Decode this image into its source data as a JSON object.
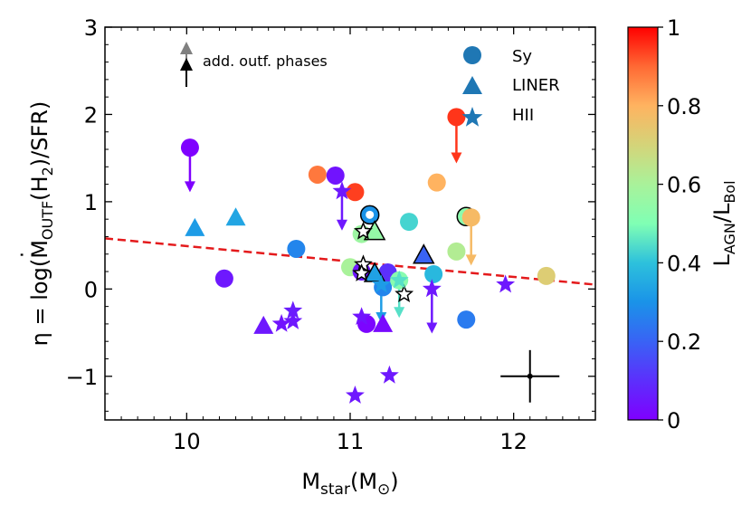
{
  "chart_data": {
    "type": "scatter",
    "xlabel": "M",
    "xlabel_sub": "star",
    "xlabel_unit": "(M",
    "xlabel_unit_sub": "⊙",
    "xlabel_close": ")",
    "ylabel_parts": {
      "eta": "η = log(",
      "m": "M",
      "m_sub": "OUTF",
      "h": "(H",
      "h_sub": "2",
      "tail": ")/SFR)"
    },
    "xlim": [
      9.5,
      12.5
    ],
    "ylim": [
      -1.5,
      3.0
    ],
    "xticks": [
      10,
      11,
      12
    ],
    "yticks": [
      -1,
      0,
      1,
      2,
      3
    ],
    "xtick_labels": [
      "10",
      "11",
      "12"
    ],
    "ytick_labels": [
      "−1",
      "0",
      "1",
      "2",
      "3"
    ],
    "colorbar": {
      "label_main": "L",
      "label_sub1": "AGN",
      "label_slash": "/L",
      "label_sub2": "Bol",
      "range": [
        0,
        1
      ],
      "ticks": [
        0,
        0.2,
        0.4,
        0.6,
        0.8,
        1
      ],
      "tick_labels": [
        "0",
        "0.2",
        "0.4",
        "0.6",
        "0.8",
        "1"
      ]
    },
    "legend": {
      "position": "top-right",
      "entries": [
        {
          "marker": "circle",
          "label": "Sy"
        },
        {
          "marker": "triangle",
          "label": "LINER"
        },
        {
          "marker": "star",
          "label": "HII"
        }
      ],
      "color": "#1f77b4"
    },
    "arrow_key": {
      "position": "top-left",
      "label": "add. outf. phases",
      "colors": [
        "#808080",
        "#000000"
      ]
    },
    "fit_line": {
      "x": [
        9.5,
        12.5
      ],
      "y": [
        0.58,
        0.05
      ],
      "color": "#e41a1c",
      "style": "dashed"
    },
    "errorbar": {
      "x": 12.1,
      "y": -1.0,
      "xerr": 0.18,
      "yerr": 0.3
    },
    "points": [
      {
        "x": 10.02,
        "y": 1.62,
        "marker": "circle",
        "c": 0.0,
        "arrow_to": 1.12
      },
      {
        "x": 10.23,
        "y": 0.12,
        "marker": "circle",
        "c": 0.05
      },
      {
        "x": 10.67,
        "y": 0.46,
        "marker": "circle",
        "c": 0.27
      },
      {
        "x": 10.8,
        "y": 1.31,
        "marker": "circle",
        "c": 0.88
      },
      {
        "x": 10.91,
        "y": 1.3,
        "marker": "circle",
        "c": 0.04
      },
      {
        "x": 11.03,
        "y": 1.11,
        "marker": "circle",
        "c": 0.94
      },
      {
        "x": 11.07,
        "y": 0.63,
        "marker": "circle",
        "c": 0.57
      },
      {
        "x": 11.12,
        "y": 0.85,
        "marker": "circle",
        "c": 0.3,
        "edge": true
      },
      {
        "x": 11.0,
        "y": 0.25,
        "marker": "circle",
        "c": 0.6
      },
      {
        "x": 11.07,
        "y": 0.2,
        "marker": "circle",
        "c": 0.05
      },
      {
        "x": 11.2,
        "y": 0.02,
        "marker": "circle",
        "c": 0.27
      },
      {
        "x": 11.23,
        "y": 0.19,
        "marker": "circle",
        "c": 0.1
      },
      {
        "x": 11.3,
        "y": 0.1,
        "marker": "circle",
        "c": 0.52
      },
      {
        "x": 11.36,
        "y": 0.77,
        "marker": "circle",
        "c": 0.43
      },
      {
        "x": 11.51,
        "y": 0.17,
        "marker": "circle",
        "c": 0.38
      },
      {
        "x": 11.53,
        "y": 1.22,
        "marker": "circle",
        "c": 0.8
      },
      {
        "x": 11.65,
        "y": 1.97,
        "marker": "circle",
        "c": 0.95,
        "arrow_to": 1.45
      },
      {
        "x": 11.65,
        "y": 0.43,
        "marker": "circle",
        "c": 0.62
      },
      {
        "x": 11.71,
        "y": 0.83,
        "marker": "circle",
        "c": 0.53,
        "edge": true
      },
      {
        "x": 11.74,
        "y": 0.82,
        "marker": "circle",
        "c": 0.78,
        "arrow_to": 0.28
      },
      {
        "x": 11.71,
        "y": -0.35,
        "marker": "circle",
        "c": 0.25
      },
      {
        "x": 12.2,
        "y": 0.15,
        "marker": "circle",
        "c": 0.72
      },
      {
        "x": 11.1,
        "y": -0.4,
        "marker": "circle",
        "c": 0.01
      },
      {
        "x": 10.05,
        "y": 0.7,
        "marker": "triangle",
        "c": 0.32
      },
      {
        "x": 10.3,
        "y": 0.82,
        "marker": "triangle",
        "c": 0.34
      },
      {
        "x": 11.15,
        "y": 0.66,
        "marker": "triangle",
        "c": 0.55,
        "edge": true
      },
      {
        "x": 11.15,
        "y": 0.18,
        "marker": "triangle",
        "c": 0.33,
        "edge": true
      },
      {
        "x": 11.45,
        "y": 0.39,
        "marker": "triangle",
        "c": 0.2,
        "edge": true
      },
      {
        "x": 10.47,
        "y": -0.42,
        "marker": "triangle",
        "c": 0.05
      },
      {
        "x": 11.2,
        "y": -0.4,
        "marker": "triangle",
        "c": 0.02
      },
      {
        "x": 10.95,
        "y": 1.12,
        "marker": "star",
        "c": 0.05,
        "arrow_to": 0.68
      },
      {
        "x": 11.08,
        "y": 0.66,
        "marker": "star",
        "c": 0.0,
        "white": true
      },
      {
        "x": 11.08,
        "y": 0.28,
        "marker": "star",
        "c": 0.0,
        "white": true
      },
      {
        "x": 11.07,
        "y": 0.18,
        "marker": "star",
        "c": 0.0,
        "white": true
      },
      {
        "x": 11.33,
        "y": -0.06,
        "marker": "star",
        "c": 0.0,
        "white": true
      },
      {
        "x": 11.19,
        "y": 0.05,
        "marker": "star",
        "c": 0.32,
        "arrow_to": -0.38
      },
      {
        "x": 11.3,
        "y": 0.1,
        "marker": "star",
        "c": 0.45,
        "arrow_to": -0.32
      },
      {
        "x": 11.5,
        "y": 0.0,
        "marker": "star",
        "c": 0.05,
        "arrow_to": -0.5
      },
      {
        "x": 10.65,
        "y": -0.25,
        "marker": "star",
        "c": 0.06
      },
      {
        "x": 10.65,
        "y": -0.37,
        "marker": "star",
        "c": 0.05
      },
      {
        "x": 10.58,
        "y": -0.4,
        "marker": "star",
        "c": 0.04
      },
      {
        "x": 11.07,
        "y": -0.32,
        "marker": "star",
        "c": 0.04
      },
      {
        "x": 11.95,
        "y": 0.05,
        "marker": "star",
        "c": 0.05
      },
      {
        "x": 11.24,
        "y": -0.99,
        "marker": "star",
        "c": 0.05
      },
      {
        "x": 11.03,
        "y": -1.22,
        "marker": "star",
        "c": 0.05
      }
    ]
  }
}
